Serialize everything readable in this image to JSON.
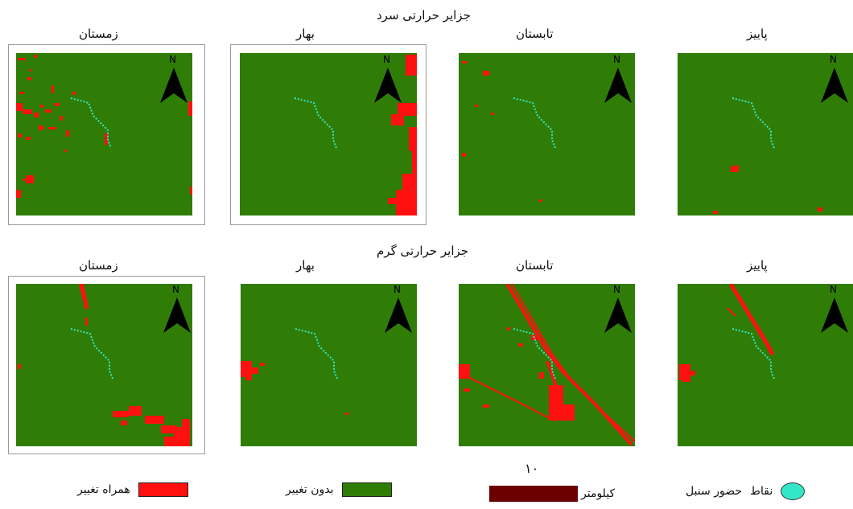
{
  "rows": [
    {
      "title": "جزایر حرارتی سرد",
      "panels": [
        {
          "season": "زمستان"
        },
        {
          "season": "بهار"
        },
        {
          "season": "تابستان"
        },
        {
          "season": "پاییز"
        }
      ]
    },
    {
      "title": "جزایر حرارتی گرم",
      "panels": [
        {
          "season": "زمستان"
        },
        {
          "season": "بهار"
        },
        {
          "season": "تابستان"
        },
        {
          "season": "پاییز"
        }
      ]
    }
  ],
  "north_label": "N",
  "legend": {
    "changed": "همراه تغییر",
    "unchanged": "بدون تغییر",
    "scale_value": "۱۰",
    "scale_unit": "کیلومتر",
    "points": "نقاط",
    "presence": "حضور سنبل"
  },
  "colors": {
    "unchanged": "#2f7d06",
    "changed": "#ff1010",
    "scale": "#6b0000",
    "points": "#34e6c8"
  }
}
